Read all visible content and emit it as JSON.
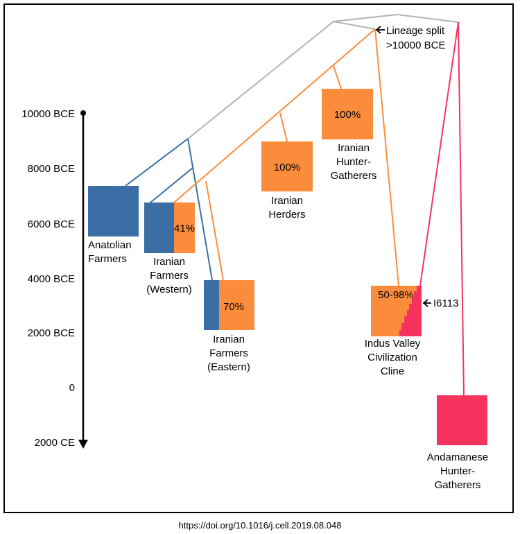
{
  "time_axis": {
    "ticks": [
      "10000 BCE",
      "8000 BCE",
      "6000 BCE",
      "4000 BCE",
      "2000 BCE",
      "0",
      "2000 CE"
    ]
  },
  "annotations": {
    "lineage_split": [
      "Lineage split",
      ">10000 BCE"
    ],
    "sample": "I6113"
  },
  "populations": {
    "anatolian": {
      "label": [
        "Anatolian",
        "Farmers"
      ]
    },
    "iranian_western": {
      "label": [
        "Iranian",
        "Farmers",
        "(Western)"
      ],
      "percent": "41%"
    },
    "iranian_eastern": {
      "label": [
        "Iranian",
        "Farmers",
        "(Eastern)"
      ],
      "percent": "70%"
    },
    "iranian_herders": {
      "label": [
        "Iranian",
        "Herders"
      ],
      "percent": "100%"
    },
    "iranian_hg": {
      "label": [
        "Iranian",
        "Hunter-",
        "Gatherers"
      ],
      "percent": "100%"
    },
    "ivc": {
      "label": [
        "Indus Valley",
        "Civilization",
        "Cline"
      ],
      "percent": "50-98%"
    },
    "andamanese": {
      "label": [
        "Andamanese",
        "Hunter-",
        "Gatherers"
      ]
    }
  },
  "colors": {
    "anatolian_blue": "#3a6ea5",
    "iranian_orange": "#fb8c3c",
    "andamanese_pink": "#f6335f",
    "root_gray": "#b3b3b3"
  },
  "footer": {
    "doi": "https://doi.org/10.1016/j.cell.2019.08.048"
  }
}
